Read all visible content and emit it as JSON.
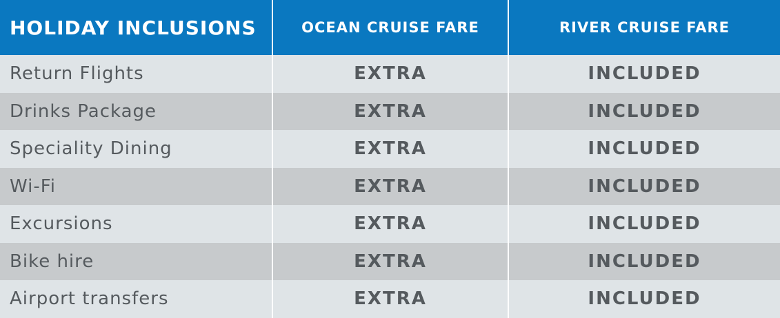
{
  "table": {
    "header": [
      "HOLIDAY INCLUSIONS",
      "OCEAN CRUISE FARE",
      "RIVER CRUISE FARE"
    ],
    "rows": [
      [
        "Return Flights",
        "EXTRA",
        "INCLUDED"
      ],
      [
        "Drinks Package",
        "EXTRA",
        "INCLUDED"
      ],
      [
        "Speciality Dining",
        "EXTRA",
        "INCLUDED"
      ],
      [
        "Wi-Fi",
        "EXTRA",
        "INCLUDED"
      ],
      [
        "Excursions",
        "EXTRA",
        "INCLUDED"
      ],
      [
        "Bike hire",
        "EXTRA",
        "INCLUDED"
      ],
      [
        "Airport transfers",
        "EXTRA",
        "INCLUDED"
      ]
    ]
  }
}
